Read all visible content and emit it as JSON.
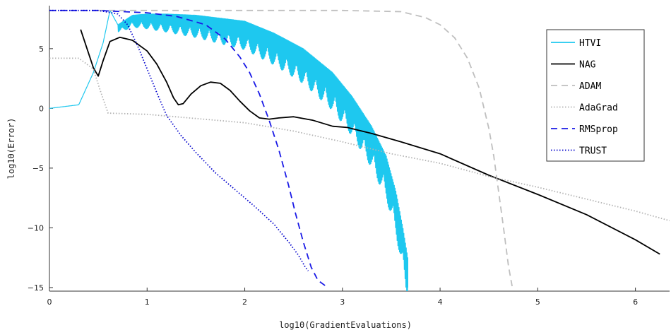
{
  "chart_data": {
    "type": "line",
    "xlabel": "log10(GradientEvaluations)",
    "ylabel": "log10(Error)",
    "xlim": [
      0,
      6.35
    ],
    "ylim": [
      -15.3,
      8.6
    ],
    "xticks": [
      0,
      1,
      2,
      3,
      4,
      5,
      6
    ],
    "yticks": [
      -15,
      -10,
      -5,
      0,
      5
    ],
    "grid": false,
    "legend_position": "top-right",
    "series": [
      {
        "name": "HTVI",
        "color": "#1ec8ef",
        "style": "solid",
        "oscillating": true,
        "points": [
          [
            0,
            0
          ],
          [
            0.3,
            0.3
          ],
          [
            0.45,
            3.0
          ],
          [
            0.55,
            5.5
          ],
          [
            0.62,
            8.2
          ],
          [
            0.7,
            7.0
          ],
          [
            0.85,
            7.8
          ],
          [
            1.0,
            7.9
          ],
          [
            1.2,
            7.9
          ],
          [
            1.5,
            7.8
          ],
          [
            2.0,
            7.3
          ],
          [
            2.3,
            6.3
          ],
          [
            2.6,
            5.0
          ],
          [
            2.9,
            3.0
          ],
          [
            3.1,
            1.0
          ],
          [
            3.3,
            -1.5
          ],
          [
            3.45,
            -4.0
          ],
          [
            3.55,
            -7.0
          ],
          [
            3.62,
            -10.0
          ],
          [
            3.67,
            -12.5
          ]
        ]
      },
      {
        "name": "NAG",
        "color": "#000000",
        "style": "solid",
        "points": [
          [
            0.32,
            6.6
          ],
          [
            0.45,
            3.4
          ],
          [
            0.5,
            2.7
          ],
          [
            0.55,
            4.0
          ],
          [
            0.62,
            5.6
          ],
          [
            0.72,
            5.95
          ],
          [
            0.85,
            5.7
          ],
          [
            1.0,
            4.8
          ],
          [
            1.1,
            3.7
          ],
          [
            1.2,
            2.2
          ],
          [
            1.27,
            0.9
          ],
          [
            1.32,
            0.3
          ],
          [
            1.37,
            0.4
          ],
          [
            1.45,
            1.2
          ],
          [
            1.55,
            1.9
          ],
          [
            1.65,
            2.2
          ],
          [
            1.75,
            2.1
          ],
          [
            1.85,
            1.5
          ],
          [
            1.95,
            0.6
          ],
          [
            2.05,
            -0.2
          ],
          [
            2.15,
            -0.8
          ],
          [
            2.25,
            -0.9
          ],
          [
            2.35,
            -0.8
          ],
          [
            2.5,
            -0.7
          ],
          [
            2.7,
            -1.0
          ],
          [
            2.9,
            -1.5
          ],
          [
            3.05,
            -1.6
          ],
          [
            3.3,
            -2.1
          ],
          [
            3.6,
            -2.8
          ],
          [
            4.0,
            -3.8
          ],
          [
            4.5,
            -5.6
          ],
          [
            5.0,
            -7.2
          ],
          [
            5.5,
            -8.9
          ],
          [
            6.0,
            -11.0
          ],
          [
            6.25,
            -12.2
          ]
        ]
      },
      {
        "name": "ADAM",
        "color": "#bfbfbf",
        "style": "dashed",
        "points": [
          [
            0.5,
            8.2
          ],
          [
            1.0,
            8.2
          ],
          [
            2.0,
            8.2
          ],
          [
            3.0,
            8.2
          ],
          [
            3.6,
            8.1
          ],
          [
            3.85,
            7.6
          ],
          [
            4.0,
            7.0
          ],
          [
            4.15,
            5.9
          ],
          [
            4.28,
            4.2
          ],
          [
            4.4,
            1.7
          ],
          [
            4.5,
            -1.7
          ],
          [
            4.55,
            -4.0
          ],
          [
            4.6,
            -7.0
          ],
          [
            4.65,
            -10.0
          ],
          [
            4.7,
            -13.2
          ],
          [
            4.74,
            -15.0
          ]
        ]
      },
      {
        "name": "AdaGrad",
        "color": "#b3b3b3",
        "style": "dotted",
        "points": [
          [
            0,
            4.2
          ],
          [
            0.3,
            4.2
          ],
          [
            0.45,
            3.3
          ],
          [
            0.52,
            1.5
          ],
          [
            0.6,
            -0.4
          ],
          [
            1.0,
            -0.5
          ],
          [
            1.5,
            -0.85
          ],
          [
            2.0,
            -1.2
          ],
          [
            2.5,
            -1.9
          ],
          [
            3.0,
            -2.8
          ],
          [
            3.5,
            -3.8
          ],
          [
            4.0,
            -4.6
          ],
          [
            4.5,
            -5.7
          ],
          [
            5.0,
            -6.6
          ],
          [
            5.5,
            -7.6
          ],
          [
            6.0,
            -8.6
          ],
          [
            6.35,
            -9.4
          ]
        ]
      },
      {
        "name": "RMSprop",
        "color": "#1a1ae6",
        "style": "dashed",
        "points": [
          [
            0,
            8.2
          ],
          [
            0.5,
            8.2
          ],
          [
            1.0,
            8.0
          ],
          [
            1.3,
            7.7
          ],
          [
            1.6,
            7.0
          ],
          [
            1.8,
            5.8
          ],
          [
            1.95,
            4.3
          ],
          [
            2.05,
            3.0
          ],
          [
            2.15,
            1.2
          ],
          [
            2.25,
            -1.0
          ],
          [
            2.35,
            -3.5
          ],
          [
            2.45,
            -6.5
          ],
          [
            2.52,
            -8.8
          ],
          [
            2.6,
            -11.2
          ],
          [
            2.68,
            -13.3
          ],
          [
            2.75,
            -14.4
          ],
          [
            2.85,
            -15.0
          ]
        ]
      },
      {
        "name": "TRUST",
        "color": "#0000cc",
        "style": "dotted",
        "points": [
          [
            0,
            8.2
          ],
          [
            0.5,
            8.2
          ],
          [
            0.7,
            7.9
          ],
          [
            0.8,
            7.0
          ],
          [
            0.9,
            5.3
          ],
          [
            1.0,
            3.3
          ],
          [
            1.1,
            1.3
          ],
          [
            1.2,
            -0.6
          ],
          [
            1.35,
            -2.3
          ],
          [
            1.5,
            -3.7
          ],
          [
            1.7,
            -5.4
          ],
          [
            1.9,
            -6.8
          ],
          [
            2.1,
            -8.2
          ],
          [
            2.3,
            -9.7
          ],
          [
            2.45,
            -11.2
          ],
          [
            2.55,
            -12.3
          ],
          [
            2.62,
            -13.3
          ],
          [
            2.65,
            -13.6
          ]
        ]
      }
    ]
  }
}
